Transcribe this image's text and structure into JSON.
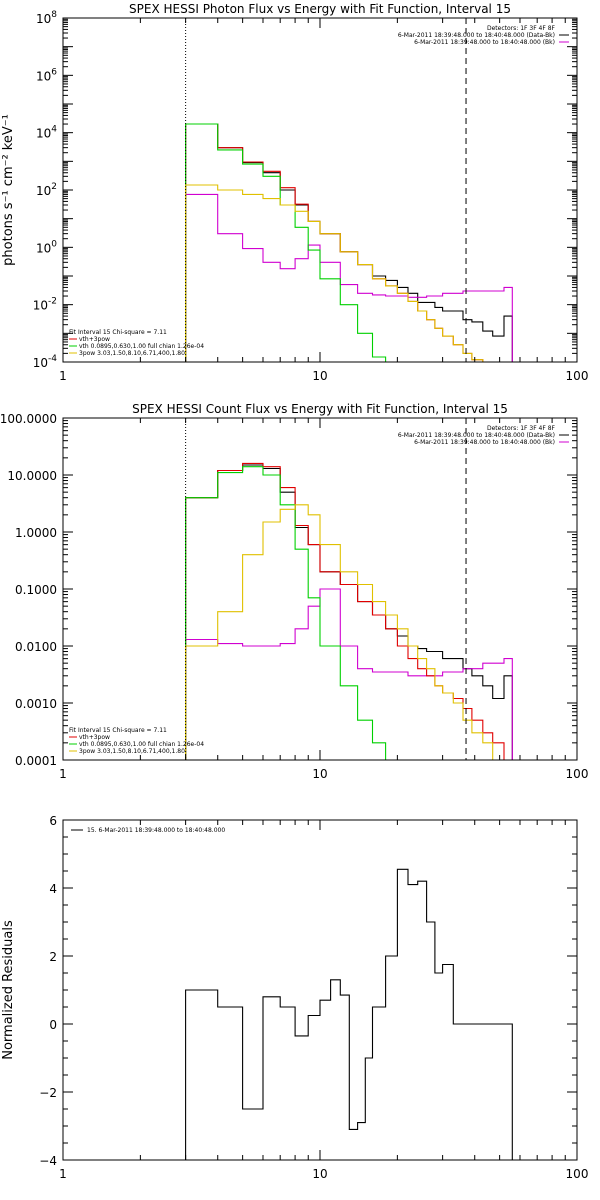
{
  "chart_data": [
    {
      "type": "line",
      "title": "SPEX HESSI Photon Flux vs Energy with Fit Function, Interval 15",
      "ylabel": "photons s⁻¹ cm⁻² keV⁻¹",
      "xlabel": "",
      "xscale": "log",
      "yscale": "log",
      "xlim": [
        1,
        100
      ],
      "ylim": [
        0.0001,
        100000000
      ],
      "x_ticks": [
        1,
        10,
        100
      ],
      "x_tick_labels": [
        "1",
        "10",
        "100"
      ],
      "y_ticks": [
        0.0001,
        0.01,
        1,
        100,
        10000,
        1000000,
        100000000
      ],
      "y_tick_labels": [
        {
          "base": "10",
          "exp": "-4"
        },
        {
          "base": "10",
          "exp": "-2"
        },
        {
          "base": "10",
          "exp": "0"
        },
        {
          "base": "10",
          "exp": "2"
        },
        {
          "base": "10",
          "exp": "4"
        },
        {
          "base": "10",
          "exp": "6"
        },
        {
          "base": "10",
          "exp": "8"
        }
      ],
      "vlines": [
        {
          "x": 3.0,
          "style": "dotted"
        },
        {
          "x": 37,
          "style": "dashed"
        }
      ],
      "legend_top": [
        {
          "text": "Detectors: 1F 3F 4F 8F",
          "color": "#000000"
        },
        {
          "text": "6-Mar-2011 18:39:48.000 to 18:40:48.000 (Data-Bk)",
          "color": "#000000"
        },
        {
          "text": "6-Mar-2011 18:39:48.000 to 18:40:48.000 (Bk)",
          "color": "#d000d0"
        }
      ],
      "legend_bottom": [
        {
          "text": "Fit Interval 15   Chi-square = 7.11",
          "color": "#000000"
        },
        {
          "text": "vth+3pow",
          "color": "#e00000"
        },
        {
          "text": "vth 0.0895,0.630,1.00  full chian 1.26e-04",
          "color": "#00d000"
        },
        {
          "text": "3pow 3.03,1.50,8.10,6.71,400,1.80",
          "color": "#e0c000"
        }
      ],
      "edges": [
        3.0,
        3.5,
        4.0,
        4.5,
        5.0,
        5.5,
        6.0,
        6.5,
        7.0,
        7.5,
        8.0,
        8.5,
        9.0,
        9.5,
        10.0,
        11.0,
        12.0,
        13.0,
        14.0,
        15.0,
        16.0,
        17.0,
        18.0,
        20.0,
        22.0,
        24.0,
        26.0,
        28.0,
        30.0,
        33.0,
        36.0,
        39.0,
        43.0,
        47.0,
        52.0,
        56.0
      ],
      "series": [
        {
          "name": "Data-Bk",
          "color": "#000000",
          "values": [
            20000,
            20000,
            3000,
            3000,
            900,
            900,
            400,
            400,
            100,
            100,
            30,
            30,
            8,
            8,
            3,
            3,
            0.7,
            0.7,
            0.25,
            0.25,
            0.1,
            0.1,
            0.07,
            0.04,
            0.025,
            0.012,
            0.012,
            0.008,
            0.006,
            0.006,
            0.003,
            0.0025,
            0.0012,
            0.0008,
            0.004
          ]
        },
        {
          "name": "Bk",
          "color": "#d000d0",
          "values": [
            70,
            70,
            3,
            3,
            0.9,
            0.9,
            0.3,
            0.3,
            0.18,
            0.18,
            0.4,
            0.4,
            1.2,
            1.2,
            0.3,
            0.3,
            0.05,
            0.05,
            0.025,
            0.025,
            0.022,
            0.022,
            0.02,
            0.02,
            0.018,
            0.018,
            0.02,
            0.02,
            0.025,
            0.025,
            0.03,
            0.03,
            0.03,
            0.03,
            0.04
          ]
        },
        {
          "name": "vth+3pow",
          "color": "#e00000",
          "values": [
            20000,
            20000,
            3000,
            3000,
            950,
            950,
            450,
            450,
            120,
            120,
            32,
            32,
            8,
            8,
            3,
            3,
            0.7,
            0.7,
            0.25,
            0.25,
            0.08,
            0.08,
            0.045,
            0.025,
            0.013,
            0.006,
            0.003,
            0.0015,
            0.0008,
            0.0004,
            0.0002,
            0.00012,
            0.0001,
            0.0001,
            0.0001
          ]
        },
        {
          "name": "vth",
          "color": "#00d000",
          "values": [
            20000,
            20000,
            2500,
            2500,
            800,
            800,
            300,
            300,
            30,
            30,
            5,
            5,
            0.8,
            0.8,
            0.08,
            0.08,
            0.01,
            0.01,
            0.001,
            0.001,
            0.00015,
            0.00015,
            0.0001,
            0.0001,
            0.0001,
            0.0001,
            0.0001,
            0.0001,
            0.0001,
            0.0001,
            0.0001,
            0.0001,
            0.0001,
            0.0001,
            0.0001
          ]
        },
        {
          "name": "3pow",
          "color": "#e0c000",
          "values": [
            150,
            150,
            100,
            100,
            70,
            70,
            50,
            50,
            30,
            30,
            18,
            18,
            8,
            8,
            3,
            3,
            0.7,
            0.7,
            0.25,
            0.25,
            0.08,
            0.08,
            0.045,
            0.025,
            0.013,
            0.006,
            0.003,
            0.0015,
            0.0008,
            0.0004,
            0.0002,
            0.00012,
            0.0001,
            0.0001,
            0.0001
          ]
        }
      ]
    },
    {
      "type": "line",
      "title": "SPEX HESSI Count Flux vs Energy with Fit Function, Interval 15",
      "ylabel": "",
      "xlabel": "",
      "xscale": "log",
      "yscale": "log",
      "xlim": [
        1,
        100
      ],
      "ylim": [
        0.0001,
        100
      ],
      "x_ticks": [
        1,
        10,
        100
      ],
      "x_tick_labels": [
        "1",
        "10",
        "100"
      ],
      "y_ticks": [
        0.0001,
        0.001,
        0.01,
        0.1,
        1,
        10,
        100
      ],
      "y_tick_labels": [
        "0.0001",
        "0.0010",
        "0.0100",
        "0.1000",
        "1.0000",
        "10.0000",
        "100.0000"
      ],
      "vlines": [
        {
          "x": 3.0,
          "style": "dotted"
        },
        {
          "x": 37,
          "style": "dashed"
        }
      ],
      "legend_top": [
        {
          "text": "Detectors: 1F 3F 4F 8F",
          "color": "#000000"
        },
        {
          "text": "6-Mar-2011 18:39:48.000 to 18:40:48.000 (Data-Bk)",
          "color": "#000000"
        },
        {
          "text": "6-Mar-2011 18:39:48.000 to 18:40:48.000 (Bk)",
          "color": "#d000d0"
        }
      ],
      "legend_bottom": [
        {
          "text": "Fit Interval 15   Chi-square = 7.11",
          "color": "#000000"
        },
        {
          "text": "vth+3pow",
          "color": "#e00000"
        },
        {
          "text": "vth 0.0895,0.630,1.00  full chian 1.26e-04",
          "color": "#00d000"
        },
        {
          "text": "3pow 3.03,1.50,8.10,6.71,400,1.80",
          "color": "#e0c000"
        }
      ],
      "edges": [
        3.0,
        3.5,
        4.0,
        4.5,
        5.0,
        5.5,
        6.0,
        6.5,
        7.0,
        7.5,
        8.0,
        8.5,
        9.0,
        9.5,
        10.0,
        11.0,
        12.0,
        13.0,
        14.0,
        15.0,
        16.0,
        17.0,
        18.0,
        20.0,
        22.0,
        24.0,
        26.0,
        28.0,
        30.0,
        33.0,
        36.0,
        39.0,
        43.0,
        47.0,
        52.0,
        56.0
      ],
      "series": [
        {
          "name": "Data-Bk",
          "color": "#000000",
          "values": [
            4,
            4,
            12,
            12,
            15,
            15,
            13,
            13,
            5,
            5,
            1.2,
            1.2,
            0.6,
            0.6,
            0.2,
            0.2,
            0.12,
            0.12,
            0.06,
            0.06,
            0.035,
            0.035,
            0.02,
            0.015,
            0.01,
            0.009,
            0.008,
            0.008,
            0.006,
            0.006,
            0.004,
            0.003,
            0.002,
            0.0012,
            0.003
          ]
        },
        {
          "name": "Bk",
          "color": "#d000d0",
          "values": [
            0.013,
            0.013,
            0.011,
            0.011,
            0.01,
            0.01,
            0.01,
            0.01,
            0.011,
            0.011,
            0.02,
            0.02,
            0.05,
            0.05,
            0.1,
            0.1,
            0.01,
            0.01,
            0.004,
            0.004,
            0.0035,
            0.0035,
            0.0035,
            0.0035,
            0.003,
            0.003,
            0.003,
            0.003,
            0.0035,
            0.0035,
            0.004,
            0.004,
            0.005,
            0.005,
            0.006
          ]
        },
        {
          "name": "vth+3pow",
          "color": "#e00000",
          "values": [
            4,
            4,
            12,
            12,
            16,
            16,
            14,
            14,
            6,
            6,
            1.3,
            1.3,
            0.6,
            0.6,
            0.2,
            0.2,
            0.12,
            0.12,
            0.06,
            0.06,
            0.035,
            0.035,
            0.02,
            0.01,
            0.006,
            0.004,
            0.003,
            0.002,
            0.0015,
            0.0012,
            0.0008,
            0.0005,
            0.0003,
            0.0002,
            0.0001
          ]
        },
        {
          "name": "vth",
          "color": "#00d000",
          "values": [
            4,
            4,
            11,
            11,
            14,
            14,
            10,
            10,
            3,
            3,
            0.5,
            0.5,
            0.07,
            0.07,
            0.01,
            0.01,
            0.002,
            0.002,
            0.0005,
            0.0005,
            0.0002,
            0.0002,
            0.0001,
            0.0001,
            0.0001,
            0.0001,
            0.0001,
            0.0001,
            0.0001,
            0.0001,
            0.0001,
            0.0001,
            0.0001,
            0.0001,
            0.0001
          ]
        },
        {
          "name": "3pow",
          "color": "#e0c000",
          "values": [
            0.01,
            0.01,
            0.04,
            0.04,
            0.4,
            0.4,
            1.5,
            1.5,
            2.5,
            2.5,
            3,
            3,
            2,
            2,
            0.6,
            0.6,
            0.2,
            0.2,
            0.12,
            0.12,
            0.06,
            0.06,
            0.035,
            0.02,
            0.01,
            0.006,
            0.004,
            0.002,
            0.0015,
            0.001,
            0.0005,
            0.0003,
            0.0002,
            0.0001,
            0.0001
          ]
        }
      ]
    },
    {
      "type": "line",
      "title": "",
      "ylabel": "Normalized Residuals",
      "xlabel": "",
      "xscale": "log",
      "yscale": "linear",
      "xlim": [
        1,
        100
      ],
      "ylim": [
        -4,
        6
      ],
      "x_ticks": [
        1,
        10,
        100
      ],
      "x_tick_labels": [
        "1",
        "10",
        "100"
      ],
      "y_ticks": [
        -4,
        -2,
        0,
        2,
        4,
        6
      ],
      "y_tick_labels": [
        "−4",
        "−2",
        "0",
        "2",
        "4",
        "6"
      ],
      "vlines": [],
      "legend_top": [
        {
          "text": "15.  6-Mar-2011 18:39:48.000 to 18:40:48.000",
          "color": "#000000"
        }
      ],
      "legend_bottom": [],
      "edges": [
        3.0,
        4.0,
        5.0,
        6.0,
        7.0,
        8.0,
        9.0,
        10.0,
        11.0,
        12.0,
        13.0,
        14.0,
        15.0,
        16.0,
        18.0,
        20.0,
        22.0,
        24.0,
        26.0,
        28.0,
        30.0,
        33.0,
        36.0,
        44.0,
        56.0
      ],
      "series": [
        {
          "name": "",
          "color": "#000000",
          "values": [
            1.0,
            0.5,
            -2.5,
            0.8,
            0.5,
            -0.35,
            0.25,
            0.7,
            1.3,
            0.85,
            -3.1,
            -2.9,
            -1.0,
            0.5,
            2.0,
            4.55,
            4.1,
            4.2,
            3.0,
            1.5,
            1.75,
            0.0,
            0.0,
            0.0
          ]
        }
      ]
    }
  ]
}
